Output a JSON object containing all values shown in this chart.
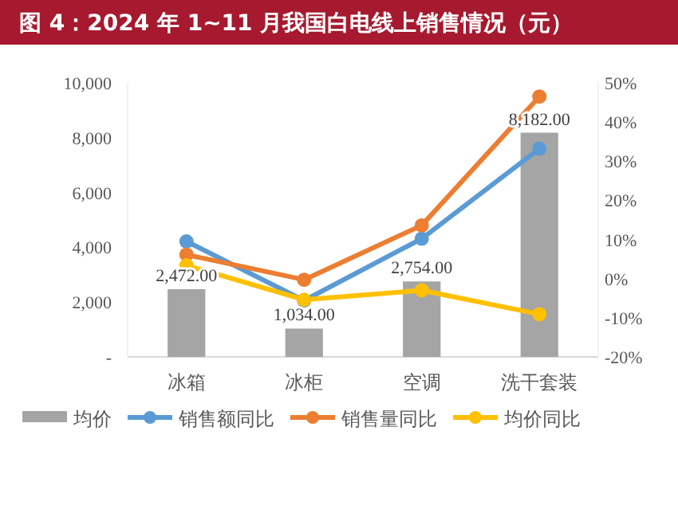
{
  "chart_data": {
    "type": "bar",
    "title": "图 4：2024 年 1~11 月我国白电线上销售情况（元）",
    "categories": [
      "冰箱",
      "冰柜",
      "空调",
      "洗干套装"
    ],
    "series": [
      {
        "name": "均价",
        "color": "#a5a5a5",
        "values": [
          2472,
          1034,
          2754,
          8182
        ],
        "value_labels": [
          "2,472.00",
          "1,034.00",
          "2,754.00",
          "8,182.00"
        ]
      },
      {
        "name": "销售额同比",
        "type": "line",
        "axis": "y2",
        "color": "#5b9bd5",
        "values": [
          9.5,
          -5.6,
          10.2,
          33.2
        ]
      },
      {
        "name": "销售量同比",
        "type": "line",
        "axis": "y2",
        "color": "#ed7d31",
        "values": [
          6.1,
          -0.3,
          13.6,
          46.5
        ]
      },
      {
        "name": "均价同比",
        "type": "line",
        "axis": "y2",
        "color": "#ffc000",
        "values": [
          3.4,
          -5.4,
          -3.0,
          -9.1
        ]
      }
    ],
    "ylim": [
      0,
      10000
    ],
    "yticks": [
      {
        "value": 0,
        "label": "-"
      },
      {
        "value": 2000,
        "label": "2,000"
      },
      {
        "value": 4000,
        "label": "4,000"
      },
      {
        "value": 6000,
        "label": "6,000"
      },
      {
        "value": 8000,
        "label": "8,000"
      },
      {
        "value": 10000,
        "label": "10,000"
      }
    ],
    "y2lim": [
      -20,
      50
    ],
    "y2ticks": [
      {
        "value": -20,
        "label": "-20%"
      },
      {
        "value": -10,
        "label": "-10%"
      },
      {
        "value": 0,
        "label": "0%"
      },
      {
        "value": 10,
        "label": "10%"
      },
      {
        "value": 20,
        "label": "20%"
      },
      {
        "value": 30,
        "label": "30%"
      },
      {
        "value": 40,
        "label": "40%"
      },
      {
        "value": 50,
        "label": "50%"
      }
    ],
    "legend": "bottom",
    "marker": "circle",
    "line_style": "solid",
    "grid": false
  }
}
